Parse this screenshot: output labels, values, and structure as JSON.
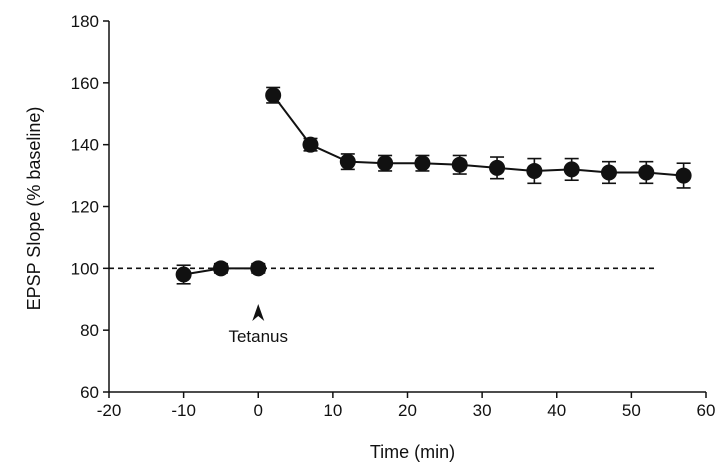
{
  "chart_data": {
    "type": "line",
    "title": "",
    "xlabel": "Time (min)",
    "ylabel": "EPSP Slope (% baseline)",
    "xlim": [
      -20,
      60
    ],
    "ylim": [
      60,
      180
    ],
    "xticks": [
      -20,
      -10,
      0,
      10,
      20,
      30,
      40,
      50,
      60
    ],
    "yticks": [
      60,
      80,
      100,
      120,
      140,
      160,
      180
    ],
    "grid": false,
    "reference_line": {
      "y": 100,
      "style": "dashed"
    },
    "annotation": {
      "text": "Tetanus",
      "x": 0
    },
    "series": [
      {
        "segment": "baseline",
        "x": [
          -10,
          -5,
          0
        ],
        "y": [
          98,
          100,
          100
        ],
        "error": [
          3,
          1.5,
          1.5
        ]
      },
      {
        "segment": "post-tetanus",
        "x": [
          2,
          7,
          12,
          17,
          22,
          27,
          32,
          37,
          42,
          47,
          52,
          57
        ],
        "y": [
          156,
          140,
          134.5,
          134,
          134,
          133.5,
          132.5,
          131.5,
          132,
          131,
          131,
          130
        ],
        "error": [
          2.5,
          2,
          2.5,
          2.5,
          2.5,
          3,
          3.5,
          4,
          3.5,
          3.5,
          3.5,
          4
        ]
      }
    ],
    "marker_color": "#111111"
  }
}
